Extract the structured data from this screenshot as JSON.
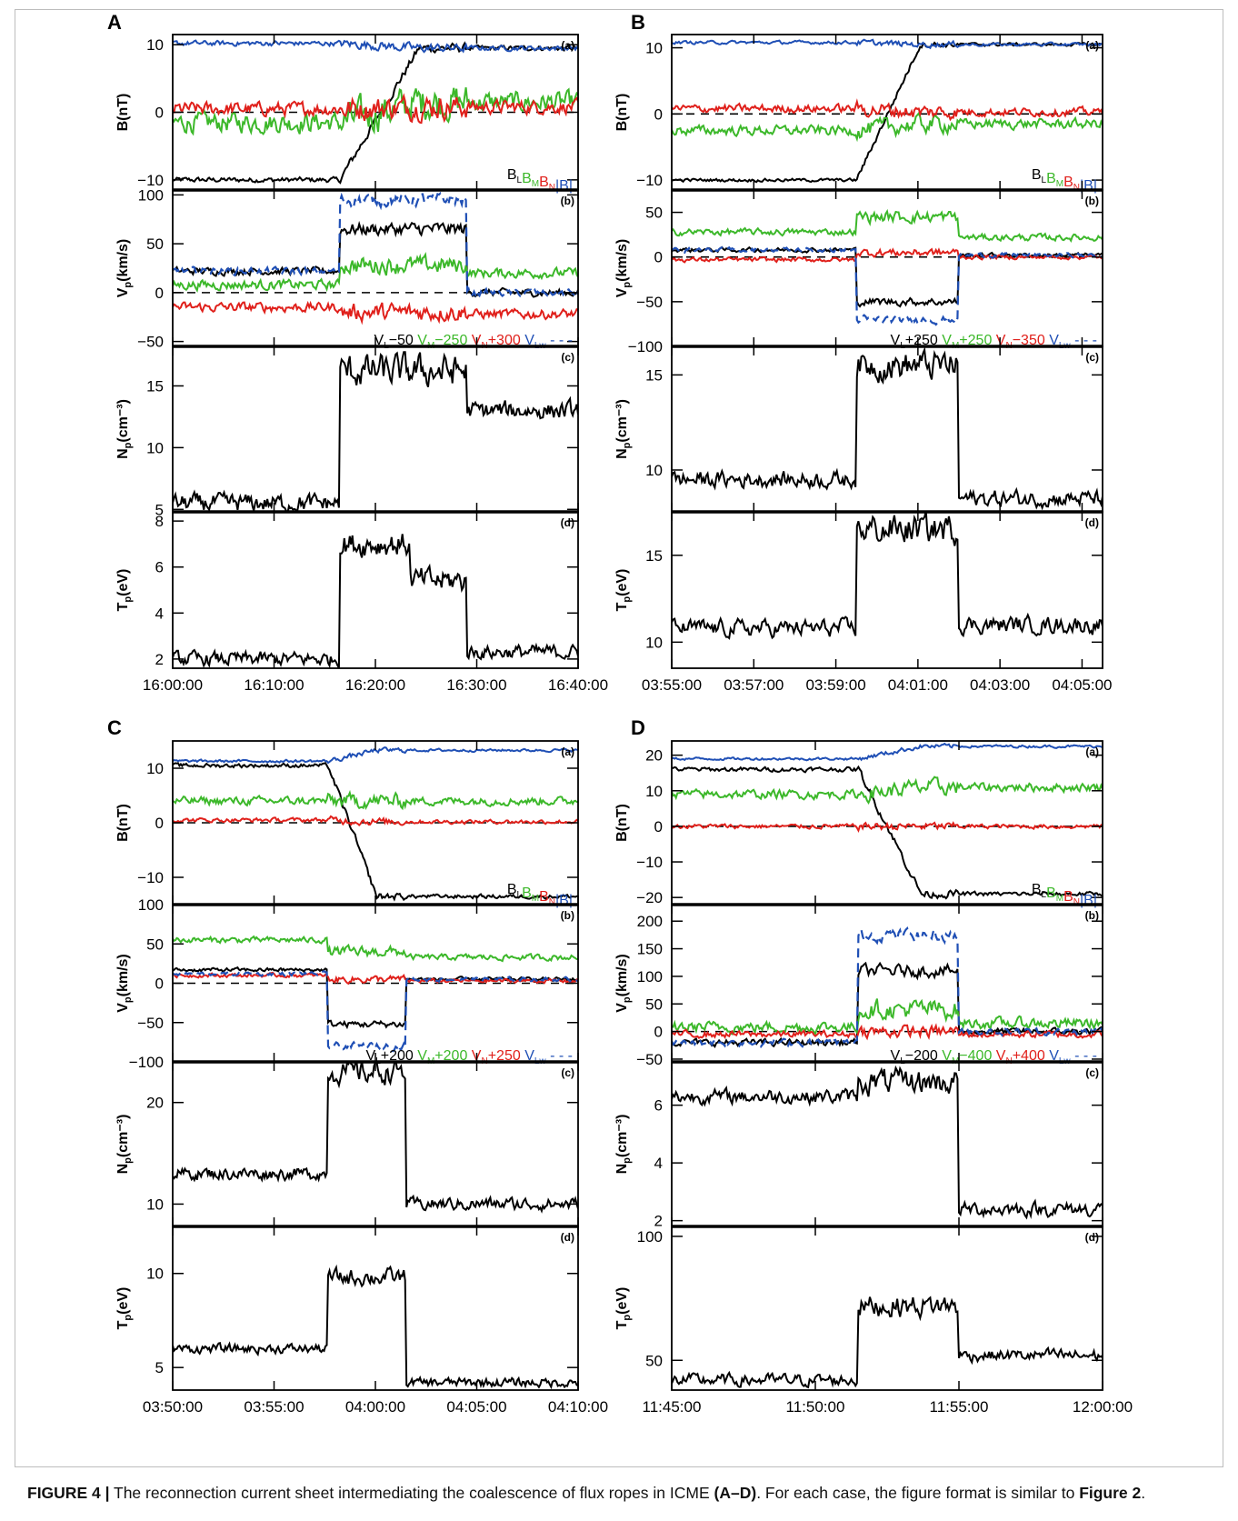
{
  "caption": {
    "label": "FIGURE 4 |",
    "text_1": " The reconnection current sheet intermediating the coalescence of flux ropes in ICME ",
    "bold_1": "(A–D)",
    "text_2": ". For each case, the figure format is similar to ",
    "bold_2": "Figure 2",
    "text_3": "."
  },
  "colors": {
    "BL": "#000000",
    "BM": "#3cb82a",
    "BN": "#e0201b",
    "B": "#1f4fb5",
    "axis": "#000000"
  },
  "chart_data": [
    {
      "label": "A",
      "type": "line",
      "xlim": [
        "16:00:00",
        "16:40:00"
      ],
      "xticks": [
        "16:00:00",
        "16:10:00",
        "16:20:00",
        "16:30:00",
        "16:40:00"
      ],
      "events": {
        "jump": "16:16:30",
        "end": "16:29:00"
      },
      "panels": [
        {
          "id": "a",
          "tag": "(a)",
          "ylabel": "B(nT)",
          "ylim": [
            -11.5,
            11.5
          ],
          "yticks": [
            -10,
            0,
            10
          ],
          "zero_line": true,
          "legend": [
            {
              "text": "B",
              "sub": "L",
              "color": "#000000"
            },
            {
              "text": "B",
              "sub": "M",
              "color": "#3cb82a"
            },
            {
              "text": "B",
              "sub": "N",
              "color": "#e0201b"
            },
            {
              "text": "|B|",
              "sub": "",
              "color": "#1f4fb5"
            }
          ],
          "series": [
            {
              "name": "BL",
              "color": "#000000",
              "before": -10,
              "after": 9.5,
              "noise": 0.3
            },
            {
              "name": "BM",
              "color": "#3cb82a",
              "before": -1.5,
              "after": 1.5,
              "noise": 1.2
            },
            {
              "name": "BN",
              "color": "#e0201b",
              "before": 0.5,
              "after": 0.8,
              "noise": 0.8
            },
            {
              "name": "|B|",
              "color": "#1f4fb5",
              "before": 10.2,
              "after": 9.5,
              "noise": 0.3
            }
          ]
        },
        {
          "id": "b",
          "tag": "(b)",
          "ylabel": "V",
          "ylabel_sub": "p",
          "ylabel_tail": "(km/s)",
          "ylim": [
            -55,
            105
          ],
          "yticks": [
            -50,
            0,
            50,
            100
          ],
          "zero_line": true,
          "legend": [
            {
              "text": "V",
              "sub": "L",
              "suffix": "−50",
              "color": "#000000"
            },
            {
              "text": "V",
              "sub": "M",
              "suffix": "−250",
              "color": "#3cb82a"
            },
            {
              "text": "V",
              "sub": "N",
              "suffix": "+300",
              "color": "#e0201b"
            },
            {
              "text": "V",
              "sub": "Lw",
              "suffix": " - - -",
              "color": "#1f4fb5"
            }
          ],
          "series": [
            {
              "name": "VL-50",
              "color": "#000000",
              "before": 22,
              "plateau": 65,
              "after": 0,
              "noise": 3
            },
            {
              "name": "VM-250",
              "color": "#3cb82a",
              "before": 8,
              "plateau": 28,
              "after": 20,
              "noise": 4
            },
            {
              "name": "VN+300",
              "color": "#e0201b",
              "before": -15,
              "plateau": -20,
              "after": -22,
              "noise": 4
            },
            {
              "name": "VLw",
              "color": "#1f4fb5",
              "dashed": true,
              "before": 22,
              "plateau": 95,
              "after": 0,
              "noise": 3
            }
          ]
        },
        {
          "id": "c",
          "tag": "(c)",
          "ylabel": "N",
          "ylabel_sub": "p",
          "ylabel_tail": "(cm⁻³)",
          "ylim": [
            4.8,
            18.2
          ],
          "yticks": [
            5,
            10,
            15
          ],
          "series": [
            {
              "name": "Np",
              "color": "#000000",
              "before": 5.5,
              "plateau": 16.2,
              "after": 13,
              "noise": 0.6
            }
          ]
        },
        {
          "id": "d",
          "tag": "(d)",
          "ylabel": "T",
          "ylabel_sub": "p",
          "ylabel_tail": "(eV)",
          "ylim": [
            1.6,
            8.4
          ],
          "yticks": [
            2,
            4,
            6,
            8
          ],
          "series": [
            {
              "name": "Tp",
              "color": "#000000",
              "before": 2.0,
              "plateau": 7.0,
              "mid": 5.4,
              "after": 2.3,
              "noise": 0.25
            }
          ]
        }
      ]
    },
    {
      "label": "B",
      "type": "line",
      "xlim": [
        "03:55:00",
        "04:05:30"
      ],
      "xticks": [
        "03:55:00",
        "03:57:00",
        "03:59:00",
        "04:01:00",
        "04:03:00",
        "04:05:00"
      ],
      "events": {
        "jump": "03:59:30",
        "end": "04:02:00"
      },
      "panels": [
        {
          "id": "a",
          "tag": "(a)",
          "ylabel": "B(nT)",
          "ylim": [
            -11.5,
            12
          ],
          "yticks": [
            -10,
            0,
            10
          ],
          "zero_line": true,
          "legend": [
            {
              "text": "B",
              "sub": "L",
              "color": "#000000"
            },
            {
              "text": "B",
              "sub": "M",
              "color": "#3cb82a"
            },
            {
              "text": "B",
              "sub": "N",
              "color": "#e0201b"
            },
            {
              "text": "|B|",
              "sub": "",
              "color": "#1f4fb5"
            }
          ],
          "series": [
            {
              "name": "BL",
              "color": "#000000",
              "before": -10,
              "after": 10.5,
              "noise": 0.2
            },
            {
              "name": "BM",
              "color": "#3cb82a",
              "before": -2.5,
              "after": -1.5,
              "noise": 0.6
            },
            {
              "name": "BN",
              "color": "#e0201b",
              "before": 0.8,
              "after": 0.3,
              "noise": 0.5
            },
            {
              "name": "|B|",
              "color": "#1f4fb5",
              "before": 10.8,
              "after": 10.5,
              "noise": 0.2
            }
          ]
        },
        {
          "id": "b",
          "tag": "(b)",
          "ylabel": "V",
          "ylabel_sub": "p",
          "ylabel_tail": "(km/s)",
          "ylim": [
            -100,
            75
          ],
          "yticks": [
            -100,
            -50,
            0,
            50
          ],
          "zero_line": true,
          "legend": [
            {
              "text": "V",
              "sub": "L",
              "suffix": "+250",
              "color": "#000000"
            },
            {
              "text": "V",
              "sub": "M",
              "suffix": "+250",
              "color": "#3cb82a"
            },
            {
              "text": "V",
              "sub": "N",
              "suffix": "−350",
              "color": "#e0201b"
            },
            {
              "text": "V",
              "sub": "Lw",
              "suffix": " - - -",
              "color": "#1f4fb5"
            }
          ],
          "series": [
            {
              "name": "VL+250",
              "color": "#000000",
              "before": 8,
              "plateau": -50,
              "after": 2,
              "noise": 2
            },
            {
              "name": "VM+250",
              "color": "#3cb82a",
              "before": 28,
              "plateau": 45,
              "after": 22,
              "noise": 3
            },
            {
              "name": "VN-350",
              "color": "#e0201b",
              "before": -3,
              "plateau": 5,
              "after": 0,
              "noise": 2
            },
            {
              "name": "VLw",
              "color": "#1f4fb5",
              "dashed": true,
              "before": 8,
              "plateau": -70,
              "after": 2,
              "noise": 2
            }
          ]
        },
        {
          "id": "c",
          "tag": "(c)",
          "ylabel": "N",
          "ylabel_sub": "p",
          "ylabel_tail": "(cm⁻³)",
          "ylim": [
            7.8,
            16.5
          ],
          "yticks": [
            10,
            15
          ],
          "series": [
            {
              "name": "Np",
              "color": "#000000",
              "before": 9.5,
              "plateau": 15.5,
              "after": 8.5,
              "noise": 0.35
            }
          ]
        },
        {
          "id": "d",
          "tag": "(d)",
          "ylabel": "T",
          "ylabel_sub": "p",
          "ylabel_tail": "(eV)",
          "ylim": [
            8.5,
            17.5
          ],
          "yticks": [
            10,
            15
          ],
          "series": [
            {
              "name": "Tp",
              "color": "#000000",
              "before": 10.8,
              "plateau": 16.5,
              "after": 11,
              "noise": 0.4
            }
          ]
        }
      ]
    },
    {
      "label": "C",
      "type": "line",
      "xlim": [
        "03:50:00",
        "04:10:00"
      ],
      "xticks": [
        "03:50:00",
        "03:55:00",
        "04:00:00",
        "04:05:00",
        "04:10:00"
      ],
      "events": {
        "jump": "03:57:40",
        "end": "04:01:30"
      },
      "panels": [
        {
          "id": "a",
          "tag": "(a)",
          "ylabel": "B(nT)",
          "ylim": [
            -15,
            15
          ],
          "yticks": [
            -10,
            0,
            10
          ],
          "zero_line": true,
          "legend": [
            {
              "text": "B",
              "sub": "L",
              "color": "#000000"
            },
            {
              "text": "B",
              "sub": "M",
              "color": "#3cb82a"
            },
            {
              "text": "B",
              "sub": "N",
              "color": "#e0201b"
            },
            {
              "text": "|B|",
              "sub": "",
              "color": "#1f4fb5"
            }
          ],
          "series": [
            {
              "name": "BL",
              "color": "#000000",
              "before": 10.5,
              "after": -13.5,
              "noise": 0.3
            },
            {
              "name": "BM",
              "color": "#3cb82a",
              "before": 4,
              "after": 4,
              "noise": 0.6
            },
            {
              "name": "BN",
              "color": "#e0201b",
              "before": 0.5,
              "after": 0.2,
              "noise": 0.3
            },
            {
              "name": "|B|",
              "color": "#1f4fb5",
              "before": 11.3,
              "after": 13.3,
              "noise": 0.2
            }
          ]
        },
        {
          "id": "b",
          "tag": "(b)",
          "ylabel": "V",
          "ylabel_sub": "p",
          "ylabel_tail": "(km/s)",
          "ylim": [
            -100,
            100
          ],
          "yticks": [
            -100,
            -50,
            0,
            50,
            100
          ],
          "zero_line": true,
          "legend": [
            {
              "text": "V",
              "sub": "L",
              "suffix": "+200",
              "color": "#000000"
            },
            {
              "text": "V",
              "sub": "M",
              "suffix": "+200",
              "color": "#3cb82a"
            },
            {
              "text": "V",
              "sub": "N",
              "suffix": "+250",
              "color": "#e0201b"
            },
            {
              "text": "V",
              "sub": "Lw",
              "suffix": " - - -",
              "color": "#1f4fb5"
            }
          ],
          "series": [
            {
              "name": "VL+200",
              "color": "#000000",
              "before": 17,
              "plateau": -52,
              "after": 5,
              "noise": 2
            },
            {
              "name": "VM+200",
              "color": "#3cb82a",
              "before": 55,
              "plateau": 40,
              "after": 33,
              "noise": 3
            },
            {
              "name": "VN+250",
              "color": "#e0201b",
              "before": 10,
              "plateau": 5,
              "after": 3,
              "noise": 2
            },
            {
              "name": "VLw",
              "color": "#1f4fb5",
              "dashed": true,
              "before": 12,
              "plateau": -80,
              "after": 5,
              "noise": 2
            }
          ]
        },
        {
          "id": "c",
          "tag": "(c)",
          "ylabel": "N",
          "ylabel_sub": "p",
          "ylabel_tail": "(cm⁻³)",
          "ylim": [
            7.8,
            24
          ],
          "yticks": [
            10,
            20
          ],
          "series": [
            {
              "name": "Np",
              "color": "#000000",
              "before": 13,
              "plateau": 23,
              "after": 10,
              "noise": 0.5
            }
          ]
        },
        {
          "id": "d",
          "tag": "(d)",
          "ylabel": "T",
          "ylabel_sub": "p",
          "ylabel_tail": "(eV)",
          "ylim": [
            3.8,
            12.5
          ],
          "yticks": [
            5,
            10
          ],
          "series": [
            {
              "name": "Tp",
              "color": "#000000",
              "before": 6,
              "plateau": 9.8,
              "after": 4.2,
              "noise": 0.2
            }
          ]
        }
      ]
    },
    {
      "label": "D",
      "type": "line",
      "xlim": [
        "11:45:00",
        "12:00:00"
      ],
      "xticks": [
        "11:45:00",
        "11:50:00",
        "11:55:00",
        "12:00:00"
      ],
      "events": {
        "jump": "11:51:30",
        "end": "11:55:00"
      },
      "panels": [
        {
          "id": "a",
          "tag": "(a)",
          "ylabel": "B(nT)",
          "ylim": [
            -22,
            24
          ],
          "yticks": [
            -20,
            -10,
            0,
            10,
            20
          ],
          "zero_line": true,
          "legend": [
            {
              "text": "B",
              "sub": "L",
              "color": "#000000"
            },
            {
              "text": "B",
              "sub": "M",
              "color": "#3cb82a"
            },
            {
              "text": "B",
              "sub": "N",
              "color": "#e0201b"
            },
            {
              "text": "|B|",
              "sub": "",
              "color": "#1f4fb5"
            }
          ],
          "series": [
            {
              "name": "BL",
              "color": "#000000",
              "before": 16,
              "after": -19,
              "noise": 0.5
            },
            {
              "name": "BM",
              "color": "#3cb82a",
              "before": 9,
              "after": 11,
              "noise": 1
            },
            {
              "name": "BN",
              "color": "#e0201b",
              "before": 0,
              "after": 0,
              "noise": 0.5
            },
            {
              "name": "|B|",
              "color": "#1f4fb5",
              "before": 19,
              "after": 22.5,
              "noise": 0.3
            }
          ]
        },
        {
          "id": "b",
          "tag": "(b)",
          "ylabel": "V",
          "ylabel_sub": "p",
          "ylabel_tail": "(km/s)",
          "ylim": [
            -55,
            230
          ],
          "yticks": [
            -50,
            0,
            50,
            100,
            150,
            200
          ],
          "zero_line": true,
          "legend": [
            {
              "text": "V",
              "sub": "L",
              "suffix": "−200",
              "color": "#000000"
            },
            {
              "text": "V",
              "sub": "M",
              "suffix": "−400",
              "color": "#3cb82a"
            },
            {
              "text": "V",
              "sub": "N",
              "suffix": "+400",
              "color": "#e0201b"
            },
            {
              "text": "V",
              "sub": "Lw",
              "suffix": " - - -",
              "color": "#1f4fb5"
            }
          ],
          "series": [
            {
              "name": "VL-200",
              "color": "#000000",
              "before": -20,
              "plateau": 110,
              "after": 0,
              "noise": 5
            },
            {
              "name": "VM-400",
              "color": "#3cb82a",
              "before": 8,
              "plateau": 40,
              "after": 15,
              "noise": 8
            },
            {
              "name": "VN+400",
              "color": "#e0201b",
              "before": -5,
              "plateau": 0,
              "after": -5,
              "noise": 5
            },
            {
              "name": "VLw",
              "color": "#1f4fb5",
              "dashed": true,
              "before": -20,
              "plateau": 175,
              "after": 0,
              "noise": 5
            }
          ]
        },
        {
          "id": "c",
          "tag": "(c)",
          "ylabel": "N",
          "ylabel_sub": "p",
          "ylabel_tail": "(cm⁻³)",
          "ylim": [
            1.8,
            7.5
          ],
          "yticks": [
            2,
            4,
            6
          ],
          "series": [
            {
              "name": "Np",
              "color": "#000000",
              "before": 6.3,
              "plateau": 6.8,
              "after": 2.4,
              "noise": 0.2
            }
          ]
        },
        {
          "id": "d",
          "tag": "(d)",
          "ylabel": "T",
          "ylabel_sub": "p",
          "ylabel_tail": "(eV)",
          "ylim": [
            38,
            104
          ],
          "yticks": [
            50,
            100
          ],
          "series": [
            {
              "name": "Tp",
              "color": "#000000",
              "before": 42,
              "plateau": 72,
              "after": 52,
              "noise": 2
            }
          ]
        }
      ]
    }
  ]
}
